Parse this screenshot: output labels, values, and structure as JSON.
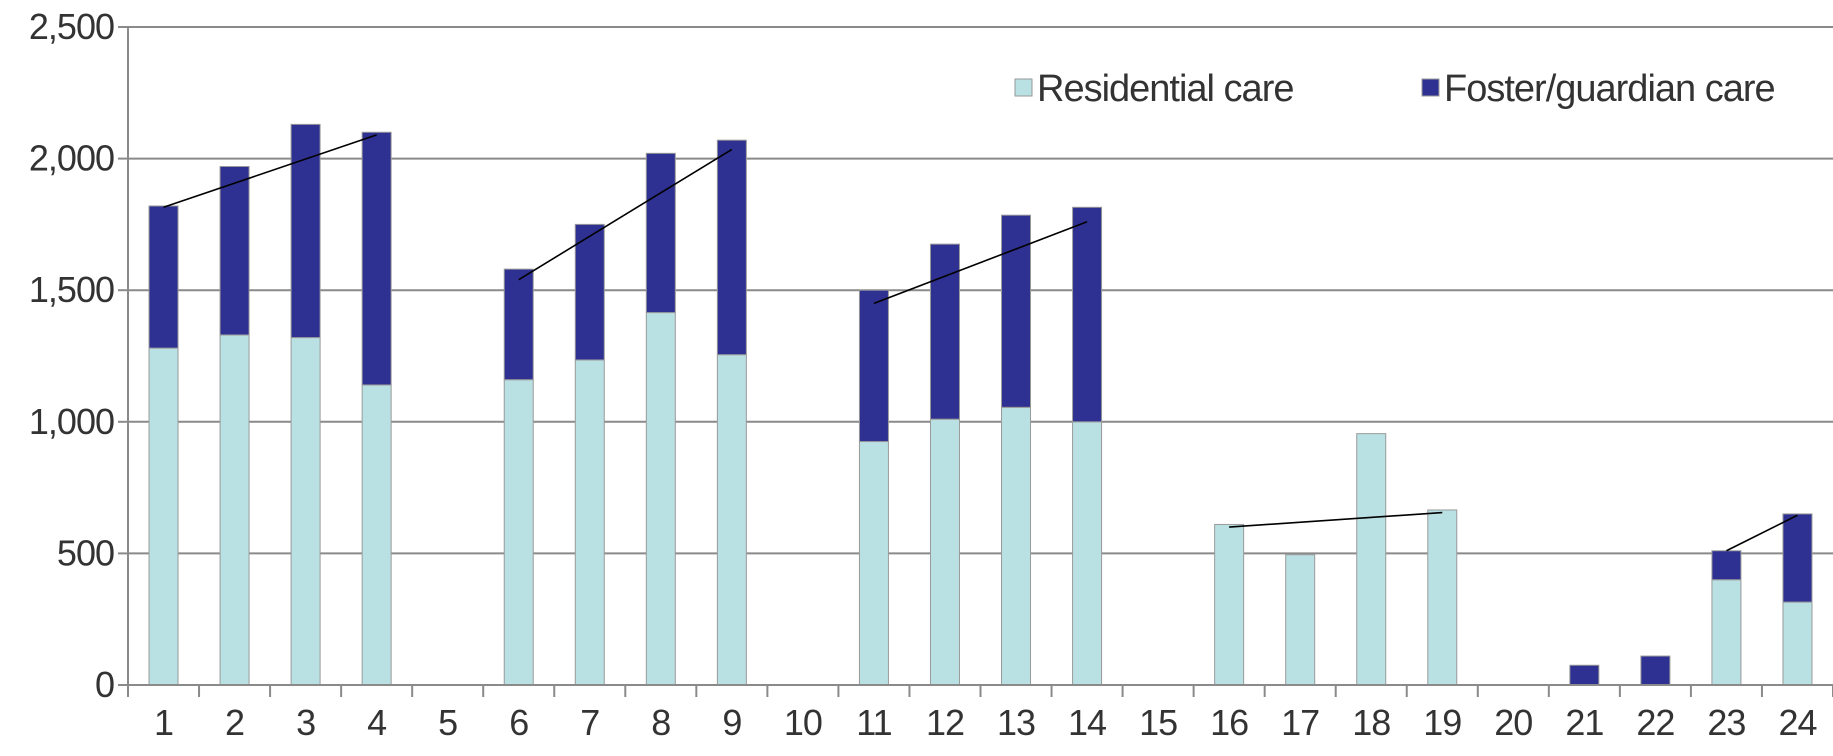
{
  "chart_data": {
    "type": "bar",
    "stacked": true,
    "categories": [
      "1",
      "2",
      "3",
      "4",
      "5",
      "6",
      "7",
      "8",
      "9",
      "10",
      "11",
      "12",
      "13",
      "14",
      "15",
      "16",
      "17",
      "18",
      "19",
      "20",
      "21",
      "22",
      "23",
      "24"
    ],
    "series": [
      {
        "name": "Residential care",
        "color": "#b9e0e3",
        "values": [
          1280,
          1330,
          1320,
          1140,
          0,
          1160,
          1235,
          1415,
          1255,
          0,
          925,
          1010,
          1055,
          1000,
          0,
          610,
          495,
          955,
          665,
          0,
          0,
          0,
          400,
          315
        ]
      },
      {
        "name": "Foster/guardian care",
        "color": "#2e3192",
        "values": [
          540,
          640,
          810,
          960,
          0,
          420,
          515,
          605,
          815,
          0,
          575,
          665,
          730,
          815,
          0,
          0,
          0,
          0,
          0,
          0,
          75,
          110,
          110,
          335
        ]
      }
    ],
    "trend_lines": [
      {
        "from": {
          "x": "1",
          "y": 1815
        },
        "to": {
          "x": "4",
          "y": 2090
        }
      },
      {
        "from": {
          "x": "6",
          "y": 1540
        },
        "to": {
          "x": "9",
          "y": 2035
        }
      },
      {
        "from": {
          "x": "11",
          "y": 1450
        },
        "to": {
          "x": "14",
          "y": 1760
        }
      },
      {
        "from": {
          "x": "16",
          "y": 600
        },
        "to": {
          "x": "19",
          "y": 655
        }
      },
      {
        "from": {
          "x": "23",
          "y": 510
        },
        "to": {
          "x": "24",
          "y": 645
        }
      }
    ],
    "ylim": [
      0,
      2500
    ],
    "yticks": [
      0,
      500,
      1000,
      1500,
      2000,
      2500
    ],
    "ytick_labels": [
      "0",
      "500",
      "1,000",
      "1,500",
      "2,000",
      "2,500"
    ],
    "xlabel": "",
    "ylabel": "",
    "title": "",
    "grid": true,
    "legend_position": "top-right",
    "colors": {
      "gridline": "#8a8a8a",
      "axis": "#8a8a8a",
      "bar_outline": "#9a9a9a",
      "trend_line": "#000000"
    }
  }
}
